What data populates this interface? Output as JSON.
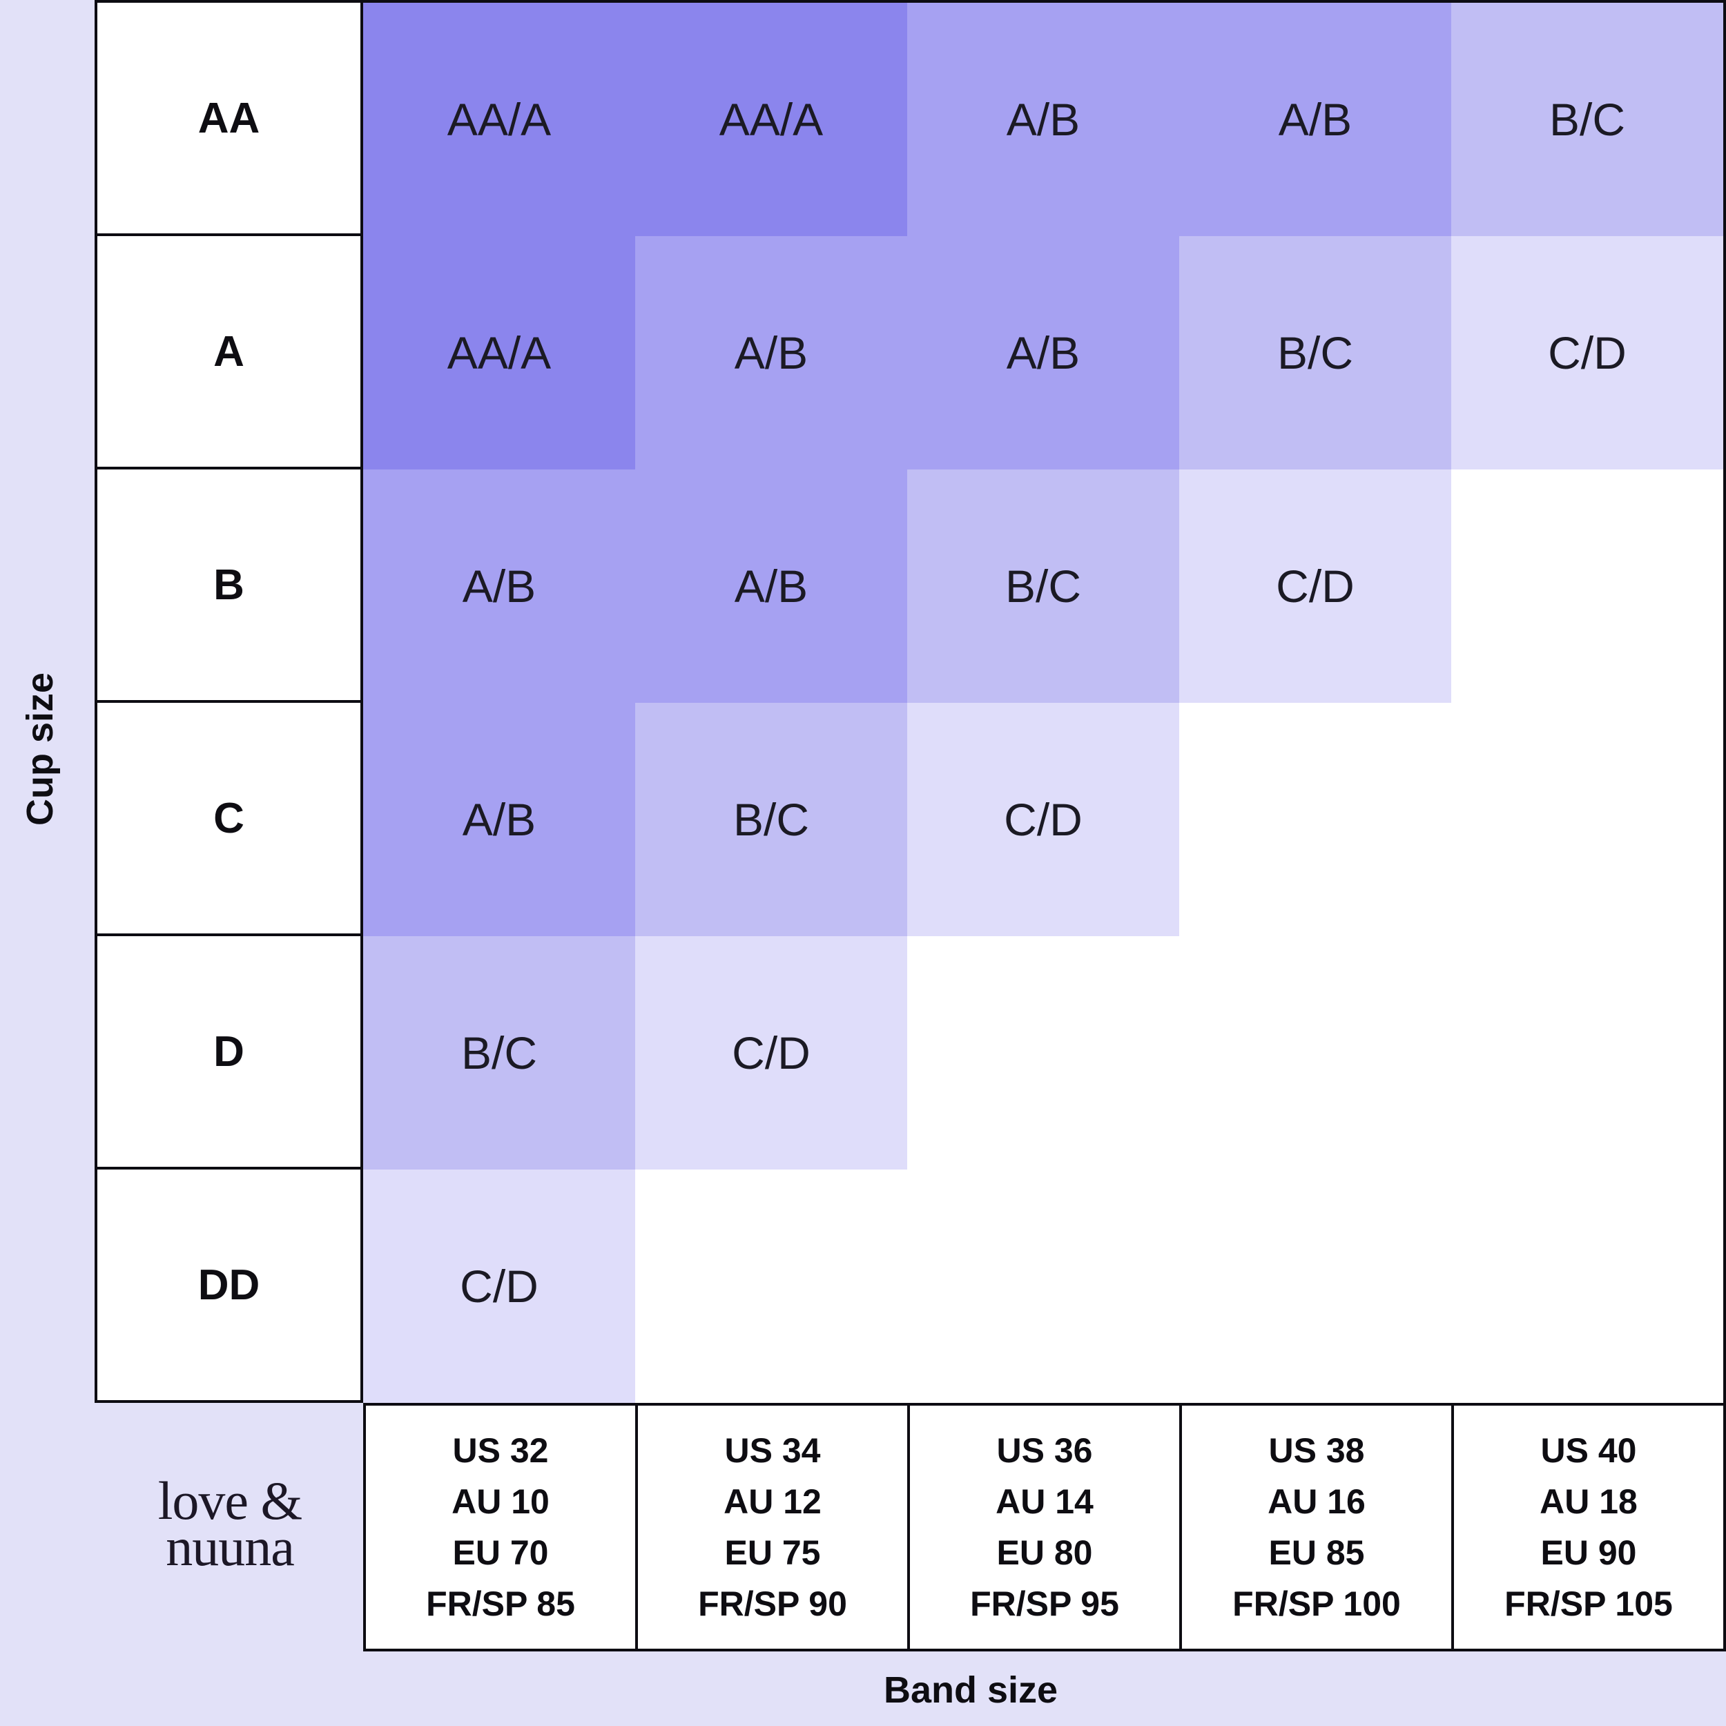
{
  "page": {
    "background": "#e2e1f8"
  },
  "axis": {
    "y_label": "Cup size",
    "x_label": "Band size"
  },
  "logo": {
    "line1": "love &",
    "line2": "nuuna"
  },
  "chart_data": {
    "type": "heatmap",
    "ylabel": "Cup size",
    "xlabel": "Band size",
    "rows": [
      "AA",
      "A",
      "B",
      "C",
      "D",
      "DD"
    ],
    "columns": [
      [
        "US 32",
        "AU 10",
        "EU 70",
        "FR/SP 85"
      ],
      [
        "US 34",
        "AU 12",
        "EU 75",
        "FR/SP 90"
      ],
      [
        "US 36",
        "AU 14",
        "EU 80",
        "FR/SP 95"
      ],
      [
        "US 38",
        "AU 16",
        "EU 85",
        "FR/SP 100"
      ],
      [
        "US 40",
        "AU 18",
        "EU 90",
        "FR/SP 105"
      ]
    ],
    "values": [
      [
        "AA/A",
        "AA/A",
        "A/B",
        "A/B",
        "B/C"
      ],
      [
        "AA/A",
        "A/B",
        "A/B",
        "B/C",
        "C/D"
      ],
      [
        "A/B",
        "A/B",
        "B/C",
        "C/D",
        ""
      ],
      [
        "A/B",
        "B/C",
        "C/D",
        "",
        ""
      ],
      [
        "B/C",
        "C/D",
        "",
        "",
        ""
      ],
      [
        "C/D",
        "",
        "",
        "",
        ""
      ]
    ],
    "value_colors": {
      "AA/A": "#8b85ed",
      "A/B": "#a6a1f2",
      "B/C": "#c1bef4",
      "C/D": "#dfddfa"
    },
    "empty_color": "#ffffff",
    "legend_position": "none",
    "grid_lines": "off"
  }
}
